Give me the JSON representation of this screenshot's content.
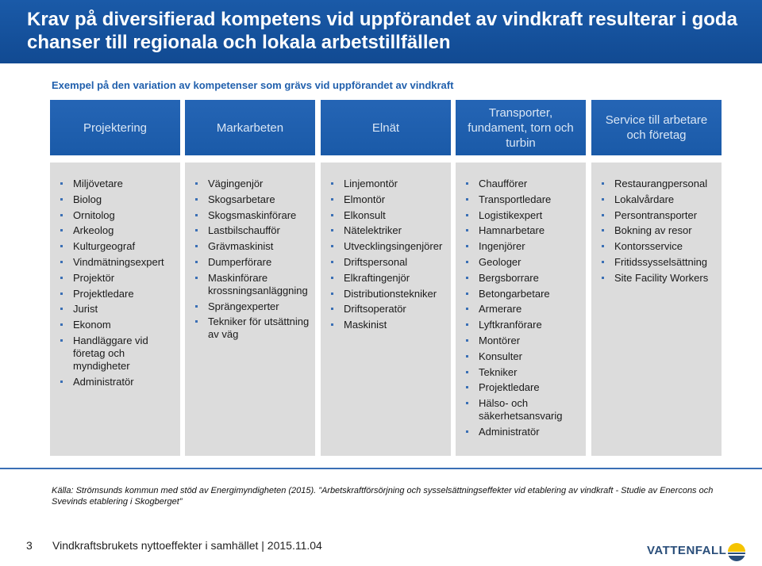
{
  "header": {
    "title": "Krav på diversifierad kompetens vid uppförandet av vindkraft resulterar i goda chanser till regionala och lokala arbetstillfällen"
  },
  "subtitle": "Exempel på den variation av kompetenser som grävs vid uppförandet av vindkraft",
  "columns": [
    {
      "header": "Projektering",
      "items": [
        "Miljövetare",
        "Biolog",
        "Ornitolog",
        "Arkeolog",
        "Kulturgeograf",
        "Vindmätningsexpert",
        "Projektör",
        "Projektledare",
        "Jurist",
        "Ekonom",
        "Handläggare vid företag och myndigheter",
        "Administratör"
      ]
    },
    {
      "header": "Markarbeten",
      "items": [
        "Vägingenjör",
        "Skogsarbetare",
        "Skogsmaskinförare",
        "Lastbilschaufför",
        "Grävmaskinist",
        "Dumperförare",
        "Maskinförare krossningsanläggning",
        "Sprängexperter",
        "Tekniker för utsättning av väg"
      ]
    },
    {
      "header": "Elnät",
      "items": [
        "Linjemontör",
        "Elmontör",
        "Elkonsult",
        "Nätelektriker",
        "Utvecklingsingenjörer",
        "Driftspersonal",
        "Elkraftingenjör",
        "Distributionstekniker",
        "Driftsoperatör",
        "Maskinist"
      ]
    },
    {
      "header": "Transporter, fundament, torn och turbin",
      "items": [
        "Chaufförer",
        "Transportledare",
        "Logistikexpert",
        "Hamnarbetare",
        "Ingenjörer",
        "Geologer",
        "Bergsborrare",
        "Betongarbetare",
        "Armerare",
        "Lyftkranförare",
        "Montörer",
        "Konsulter",
        "Tekniker",
        "Projektledare",
        "Hälso- och säkerhetsansvarig",
        "Administratör"
      ]
    },
    {
      "header": "Service till arbetare och företag",
      "items": [
        "Restaurangpersonal",
        "Lokalvårdare",
        "Persontransporter",
        "Bokning av resor",
        "Kontorsservice",
        "Fritidssysselsättning",
        "Site Facility Workers"
      ]
    }
  ],
  "source": "Källa: Strömsunds kommun med stöd av Energimyndigheten (2015). ”Arbetskraftförsörjning och sysselsättningseffekter vid etablering av vindkraft - Studie av Enercons och Svevinds etablering i Skogberget”",
  "footer": {
    "page_number": "3",
    "text": "Vindkraftsbrukets nyttoeffekter i samhället | 2015.11.04"
  },
  "logo": {
    "text": "VATTENFALL",
    "icon": "vattenfall-sun-icon",
    "colors": {
      "yellow": "#f5c400",
      "blue": "#2a4e7a"
    }
  },
  "colors": {
    "title_bar": "#1a5aa8",
    "header_box": "#2160ad",
    "column_bg": "#dcdcdc",
    "accent": "#2160ad"
  }
}
